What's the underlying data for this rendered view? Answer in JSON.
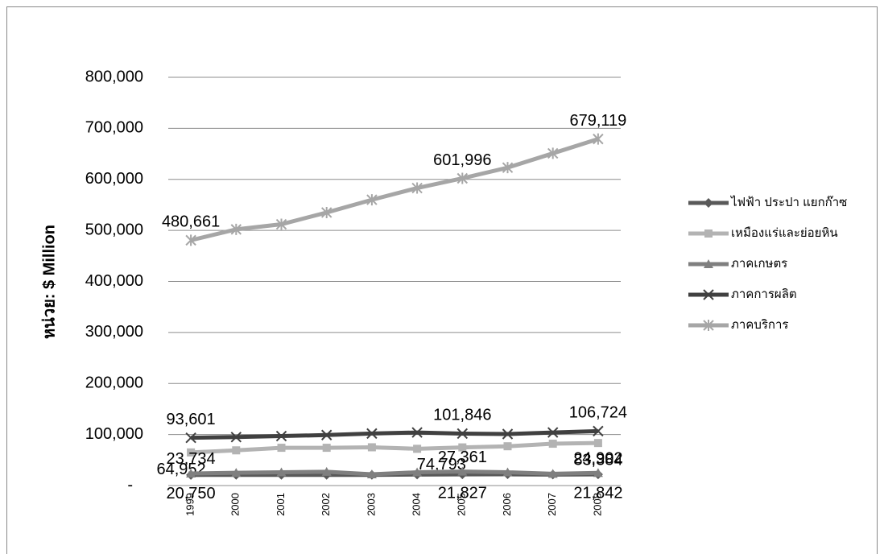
{
  "chart_data": {
    "type": "line",
    "y_axis_label": "หน่วย: $ Million",
    "categories": [
      "1999",
      "2000",
      "2001",
      "2002",
      "2003",
      "2004",
      "2005",
      "2006",
      "2007",
      "2008"
    ],
    "ylim": [
      0,
      800000
    ],
    "yticks": [
      {
        "value": 0,
        "label": "-"
      },
      {
        "value": 100000,
        "label": "100,000"
      },
      {
        "value": 200000,
        "label": "200,000"
      },
      {
        "value": 300000,
        "label": "300,000"
      },
      {
        "value": 400000,
        "label": "400,000"
      },
      {
        "value": 500000,
        "label": "500,000"
      },
      {
        "value": 600000,
        "label": "600,000"
      },
      {
        "value": 700000,
        "label": "700,000"
      },
      {
        "value": 800000,
        "label": "800,000"
      }
    ],
    "grid": true,
    "legend": "right",
    "series": [
      {
        "name": "ไฟฟ้า ประปา แยกก๊าซ",
        "color": "#595959",
        "marker": "diamond",
        "values": [
          20750,
          21000,
          21000,
          21000,
          21000,
          21500,
          21827,
          22000,
          21500,
          21842
        ],
        "value_labels": [
          "20,750",
          null,
          null,
          null,
          null,
          null,
          "21,827",
          null,
          null,
          "21,842"
        ]
      },
      {
        "name": "เหมืองแร่และย่อยหิน",
        "color": "#b3b3b3",
        "marker": "square",
        "values": [
          64952,
          69000,
          74000,
          74000,
          75000,
          72000,
          74793,
          77000,
          82000,
          83384
        ],
        "value_labels": [
          "64,952",
          null,
          null,
          null,
          null,
          null,
          "74,793",
          null,
          null,
          "83,384"
        ]
      },
      {
        "name": "ภาคเกษตร",
        "color": "#7f7f7f",
        "marker": "triangle",
        "values": [
          23734,
          25000,
          26000,
          27000,
          22000,
          26000,
          27361,
          26000,
          23000,
          24902
        ],
        "value_labels": [
          "23,734",
          null,
          null,
          null,
          null,
          null,
          "27,361",
          null,
          null,
          "24,902"
        ]
      },
      {
        "name": "ภาคการผลิต",
        "color": "#404040",
        "marker": "x",
        "values": [
          93601,
          95000,
          97000,
          99000,
          102000,
          104000,
          101846,
          101000,
          104000,
          106724
        ],
        "value_labels": [
          "93,601",
          null,
          null,
          null,
          null,
          null,
          "101,846",
          null,
          null,
          "106,724"
        ]
      },
      {
        "name": "ภาคบริการ",
        "color": "#a6a6a6",
        "marker": "asterisk",
        "values": [
          480661,
          502000,
          512000,
          535000,
          560000,
          583000,
          601996,
          623000,
          651000,
          679119
        ],
        "value_labels": [
          "480,661",
          null,
          null,
          null,
          null,
          null,
          "601,996",
          null,
          null,
          "679,119"
        ]
      }
    ]
  }
}
